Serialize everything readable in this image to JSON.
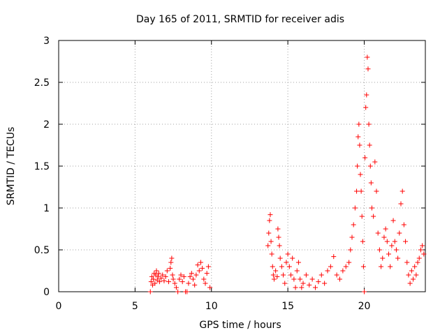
{
  "chart_data": {
    "type": "scatter",
    "title": "Day 165 of 2011, SRMTID for receiver adis",
    "xlabel": "GPS time / hours",
    "ylabel": "SRMTID / TECUs",
    "xlim": [
      0,
      24
    ],
    "ylim": [
      0,
      3
    ],
    "grid": true,
    "marker": "+",
    "color": "#ff0000",
    "xticks": [
      0,
      5,
      10,
      15,
      20
    ],
    "xtick_labels": [
      "0",
      "5",
      "10",
      "15",
      "20"
    ],
    "yticks": [
      0,
      0.5,
      1,
      1.5,
      2,
      2.5,
      3
    ],
    "ytick_labels": [
      "0",
      "0.5",
      "1",
      "1.5",
      "2",
      "2.5",
      "3"
    ],
    "series": [
      {
        "name": "SRMTID",
        "points": [
          [
            6.0,
            0.0
          ],
          [
            6.05,
            0.12
          ],
          [
            6.1,
            0.18
          ],
          [
            6.15,
            0.08
          ],
          [
            6.2,
            0.15
          ],
          [
            6.25,
            0.22
          ],
          [
            6.3,
            0.1
          ],
          [
            6.35,
            0.2
          ],
          [
            6.4,
            0.25
          ],
          [
            6.45,
            0.14
          ],
          [
            6.5,
            0.18
          ],
          [
            6.55,
            0.22
          ],
          [
            6.6,
            0.12
          ],
          [
            6.7,
            0.16
          ],
          [
            6.8,
            0.2
          ],
          [
            6.9,
            0.13
          ],
          [
            7.0,
            0.18
          ],
          [
            7.1,
            0.25
          ],
          [
            7.2,
            0.12
          ],
          [
            7.3,
            0.28
          ],
          [
            7.35,
            0.35
          ],
          [
            7.4,
            0.4
          ],
          [
            7.45,
            0.2
          ],
          [
            7.5,
            0.15
          ],
          [
            7.6,
            0.1
          ],
          [
            7.7,
            0.05
          ],
          [
            7.8,
            0.0
          ],
          [
            7.9,
            0.15
          ],
          [
            8.0,
            0.2
          ],
          [
            8.1,
            0.12
          ],
          [
            8.2,
            0.18
          ],
          [
            8.3,
            0.0
          ],
          [
            8.4,
            0.0
          ],
          [
            8.5,
            0.1
          ],
          [
            8.6,
            0.18
          ],
          [
            8.7,
            0.22
          ],
          [
            8.8,
            0.15
          ],
          [
            8.9,
            0.08
          ],
          [
            9.0,
            0.2
          ],
          [
            9.1,
            0.32
          ],
          [
            9.2,
            0.25
          ],
          [
            9.3,
            0.35
          ],
          [
            9.4,
            0.28
          ],
          [
            9.5,
            0.15
          ],
          [
            9.6,
            0.1
          ],
          [
            9.7,
            0.22
          ],
          [
            9.8,
            0.3
          ],
          [
            9.9,
            0.05
          ],
          [
            13.7,
            0.55
          ],
          [
            13.75,
            0.7
          ],
          [
            13.8,
            0.85
          ],
          [
            13.85,
            0.92
          ],
          [
            13.9,
            0.6
          ],
          [
            13.95,
            0.45
          ],
          [
            14.0,
            0.3
          ],
          [
            14.05,
            0.2
          ],
          [
            14.1,
            0.15
          ],
          [
            14.2,
            0.25
          ],
          [
            14.3,
            0.18
          ],
          [
            14.35,
            0.75
          ],
          [
            14.4,
            0.65
          ],
          [
            14.45,
            0.55
          ],
          [
            14.5,
            0.4
          ],
          [
            14.6,
            0.3
          ],
          [
            14.7,
            0.2
          ],
          [
            14.8,
            0.1
          ],
          [
            14.9,
            0.35
          ],
          [
            15.0,
            0.45
          ],
          [
            15.1,
            0.3
          ],
          [
            15.2,
            0.2
          ],
          [
            15.3,
            0.4
          ],
          [
            15.4,
            0.15
          ],
          [
            15.5,
            0.05
          ],
          [
            15.6,
            0.25
          ],
          [
            15.7,
            0.35
          ],
          [
            15.8,
            0.15
          ],
          [
            15.9,
            0.05
          ],
          [
            16.0,
            0.1
          ],
          [
            16.2,
            0.2
          ],
          [
            16.4,
            0.08
          ],
          [
            16.6,
            0.15
          ],
          [
            16.8,
            0.05
          ],
          [
            17.0,
            0.12
          ],
          [
            17.2,
            0.2
          ],
          [
            17.4,
            0.1
          ],
          [
            17.6,
            0.25
          ],
          [
            17.8,
            0.3
          ],
          [
            18.0,
            0.42
          ],
          [
            18.2,
            0.2
          ],
          [
            18.4,
            0.15
          ],
          [
            18.6,
            0.25
          ],
          [
            18.8,
            0.3
          ],
          [
            19.0,
            0.35
          ],
          [
            19.1,
            0.5
          ],
          [
            19.2,
            0.65
          ],
          [
            19.3,
            0.8
          ],
          [
            19.4,
            1.0
          ],
          [
            19.5,
            1.2
          ],
          [
            19.55,
            1.5
          ],
          [
            19.6,
            1.85
          ],
          [
            19.65,
            2.0
          ],
          [
            19.7,
            1.75
          ],
          [
            19.75,
            1.4
          ],
          [
            19.8,
            1.2
          ],
          [
            19.85,
            0.9
          ],
          [
            19.9,
            0.6
          ],
          [
            19.95,
            0.3
          ],
          [
            20.0,
            0.0
          ],
          [
            20.05,
            1.6
          ],
          [
            20.1,
            2.2
          ],
          [
            20.15,
            2.35
          ],
          [
            20.2,
            2.8
          ],
          [
            20.25,
            2.66
          ],
          [
            20.3,
            2.0
          ],
          [
            20.35,
            1.75
          ],
          [
            20.4,
            1.5
          ],
          [
            20.45,
            1.3
          ],
          [
            20.5,
            1.0
          ],
          [
            20.6,
            0.9
          ],
          [
            20.7,
            1.55
          ],
          [
            20.8,
            1.2
          ],
          [
            20.9,
            0.7
          ],
          [
            21.0,
            0.5
          ],
          [
            21.1,
            0.3
          ],
          [
            21.2,
            0.4
          ],
          [
            21.3,
            0.65
          ],
          [
            21.4,
            0.75
          ],
          [
            21.5,
            0.6
          ],
          [
            21.6,
            0.45
          ],
          [
            21.7,
            0.3
          ],
          [
            21.8,
            0.55
          ],
          [
            21.9,
            0.85
          ],
          [
            22.0,
            0.6
          ],
          [
            22.1,
            0.5
          ],
          [
            22.2,
            0.4
          ],
          [
            22.3,
            0.7
          ],
          [
            22.4,
            1.05
          ],
          [
            22.5,
            1.2
          ],
          [
            22.6,
            0.8
          ],
          [
            22.7,
            0.6
          ],
          [
            22.8,
            0.35
          ],
          [
            22.9,
            0.2
          ],
          [
            23.0,
            0.1
          ],
          [
            23.1,
            0.25
          ],
          [
            23.2,
            0.15
          ],
          [
            23.3,
            0.3
          ],
          [
            23.4,
            0.2
          ],
          [
            23.5,
            0.35
          ],
          [
            23.6,
            0.4
          ],
          [
            23.7,
            0.5
          ],
          [
            23.8,
            0.55
          ],
          [
            23.9,
            0.45
          ]
        ]
      }
    ]
  }
}
